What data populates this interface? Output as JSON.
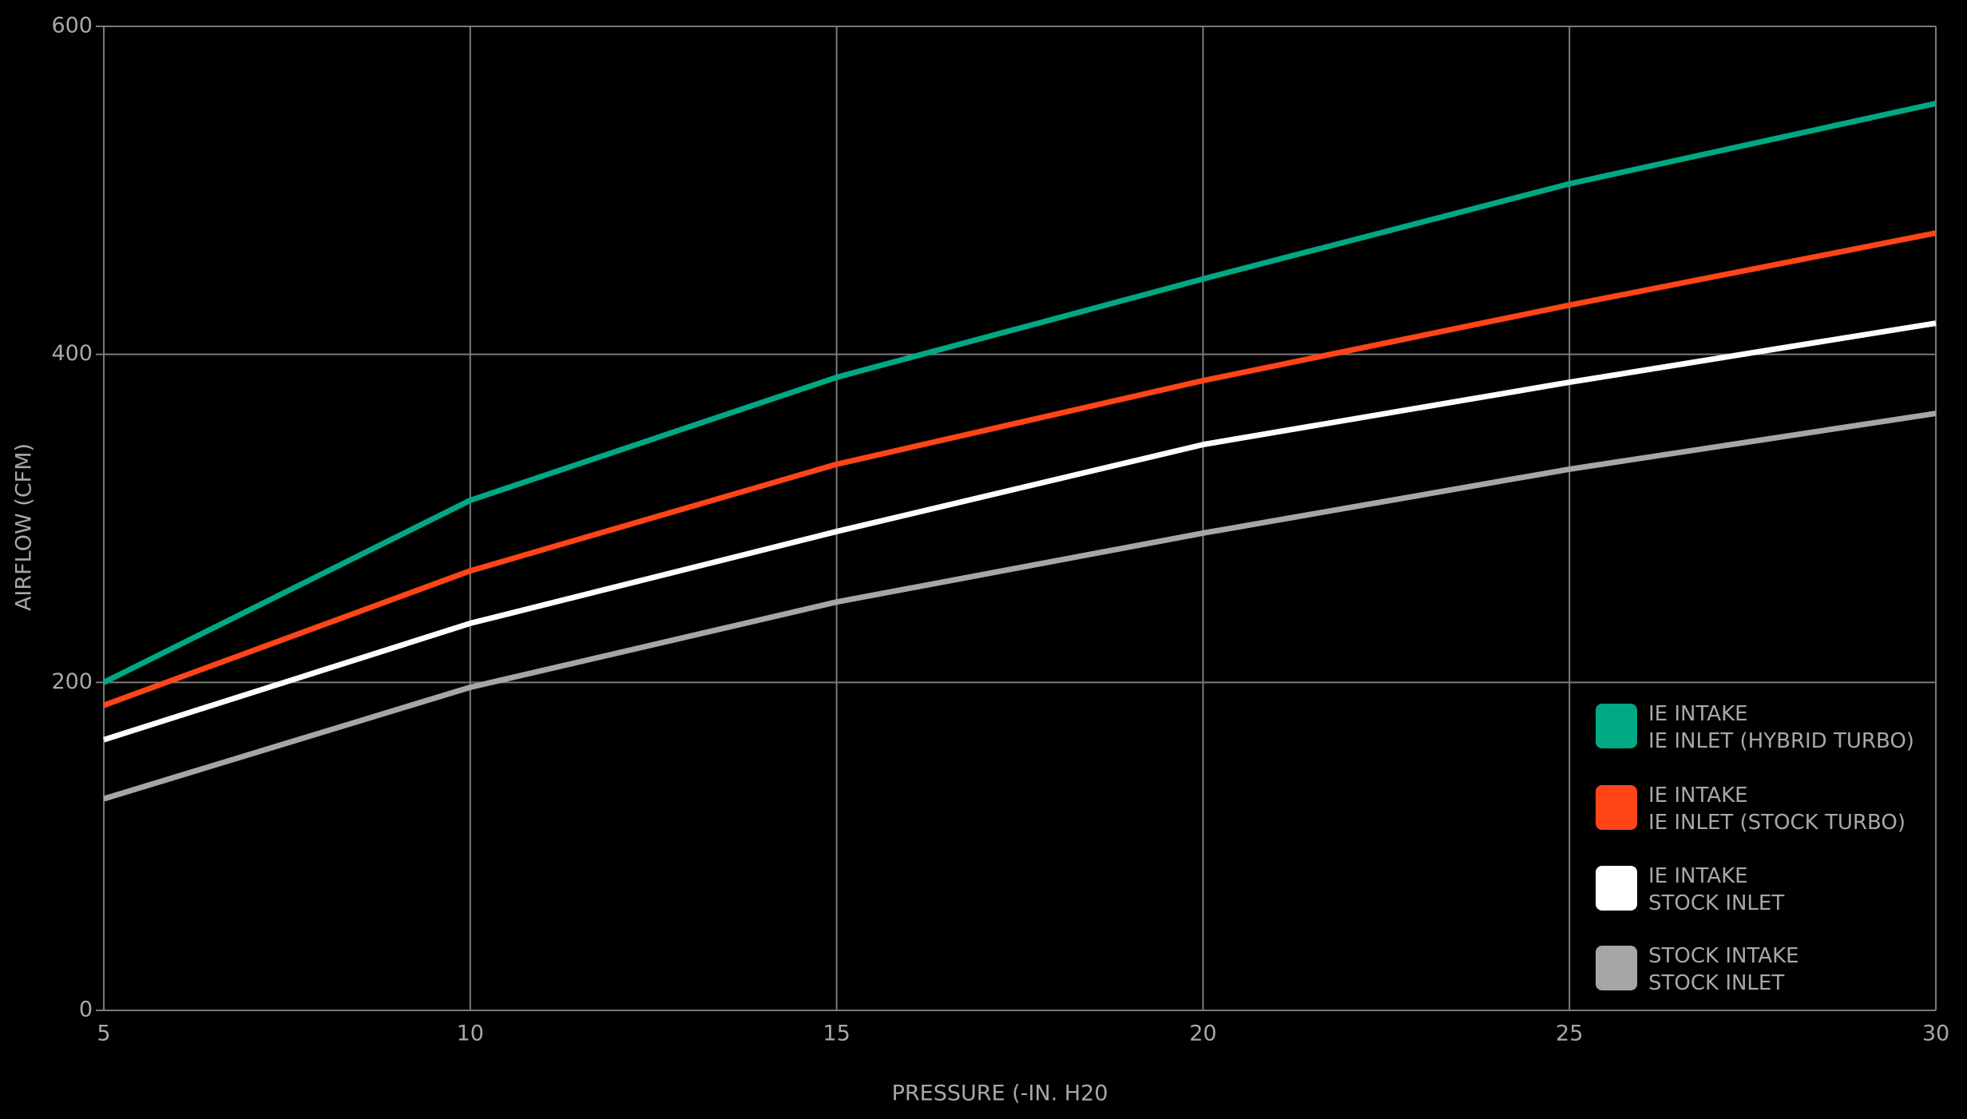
{
  "chart_data": {
    "type": "line",
    "x_label": "PRESSURE (-IN. H20",
    "y_label": "AIRFLOW (CFM)",
    "x": [
      5,
      10,
      15,
      20,
      25,
      30
    ],
    "xlim": [
      5,
      30
    ],
    "xticks": [
      5,
      10,
      15,
      20,
      25,
      30
    ],
    "ylim": [
      0,
      600
    ],
    "yticks": [
      0,
      200,
      400,
      600
    ],
    "grid": true,
    "legend": "lower right",
    "series": [
      {
        "name": "IE INTAKE\nIE INLET (HYBRID TURBO)",
        "color": "#00a884",
        "values": [
          200,
          311,
          386,
          446,
          504,
          553
        ]
      },
      {
        "name": "IE INTAKE\nIE INLET (STOCK TURBO)",
        "color": "#ff4517",
        "values": [
          186,
          268,
          333,
          384,
          430,
          474
        ]
      },
      {
        "name": "IE INTAKE\nSTOCK INLET",
        "color": "#ffffff",
        "values": [
          165,
          236,
          292,
          345,
          383,
          419
        ]
      },
      {
        "name": "STOCK INTAKE\nSTOCK INLET",
        "color": "#a6a6a6",
        "values": [
          129,
          197,
          249,
          291,
          330,
          364
        ]
      }
    ]
  }
}
